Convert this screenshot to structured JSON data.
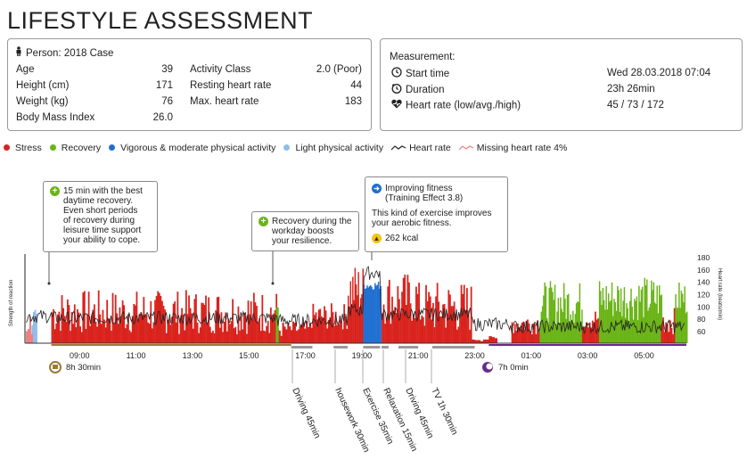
{
  "title": "LIFESTYLE ASSESSMENT",
  "person": {
    "header": "Person: 2018 Case",
    "age_label": "Age",
    "age": "39",
    "height_label": "Height (cm)",
    "height": "171",
    "weight_label": "Weight (kg)",
    "weight": "76",
    "bmi_label": "Body Mass Index",
    "bmi": "26.0",
    "activity_label": "Activity Class",
    "activity": "2.0 (Poor)",
    "rest_hr_label": "Resting heart rate",
    "rest_hr": "44",
    "max_hr_label": "Max. heart rate",
    "max_hr": "183"
  },
  "measurement": {
    "header": "Measurement:",
    "start_label": "Start time",
    "start": "Wed 28.03.2018 07:04",
    "duration_label": "Duration",
    "duration": "23h 26min",
    "hr_label": "Heart rate (low/avg./high)",
    "hr": "45 / 73 / 172"
  },
  "legend": [
    {
      "label": "Stress",
      "color": "#d9231d",
      "kind": "dot"
    },
    {
      "label": "Recovery",
      "color": "#6ab417",
      "kind": "dot"
    },
    {
      "label": "Vigorous & moderate physical activity",
      "color": "#1f6fd1",
      "kind": "dot"
    },
    {
      "label": "Light physical activity",
      "color": "#8fbde8",
      "kind": "dot"
    },
    {
      "label": "Heart rate",
      "color": "#222222",
      "kind": "line"
    },
    {
      "label": "Missing heart rate 4%",
      "color": "#f08080",
      "kind": "line"
    }
  ],
  "callouts": {
    "recovery_best": {
      "icon": "+",
      "text": [
        "15 min with the best",
        "daytime recovery.",
        "Even short periods",
        "of recovery during",
        "leisure time support",
        "your ability to cope."
      ]
    },
    "recovery_work": {
      "icon": "+",
      "text": [
        "Recovery during the",
        "workday boosts",
        "your resilience."
      ]
    },
    "fitness": {
      "title": [
        "Improving fitness",
        "(Training Effect 3.8)"
      ],
      "body": [
        "This kind of exercise improves",
        "your aerobic fitness."
      ],
      "kcal": "262 kcal"
    }
  },
  "chart_data": {
    "type": "area",
    "xlabel": "",
    "ylabel": "Strength of reaction",
    "y2label": "Heart rate (beats/min)",
    "x_ticks": [
      "09:00",
      "11:00",
      "13:00",
      "15:00",
      "17:00",
      "19:00",
      "21:00",
      "23:00",
      "01:00",
      "03:00",
      "05:00"
    ],
    "y2_ticks": [
      "60",
      "80",
      "100",
      "120",
      "140",
      "160",
      "180"
    ],
    "y2lim": [
      40,
      190
    ],
    "series_colors": {
      "stress": "#d9231d",
      "recovery": "#6ab417",
      "vigorous": "#1f6fd1",
      "light": "#8fbde8",
      "hr": "#222222",
      "missing": "#f08080"
    },
    "hr_stats": {
      "low": 45,
      "avg": 73,
      "high": 172
    },
    "sleep": {
      "duration": "7h 0min"
    },
    "work": {
      "duration": "8h 30min"
    },
    "activities": [
      "Driving 45min",
      "housework 30min",
      "Exercise 35min",
      "Relaxation 15min",
      "Driving 45min",
      "TV 1h 30min"
    ]
  }
}
